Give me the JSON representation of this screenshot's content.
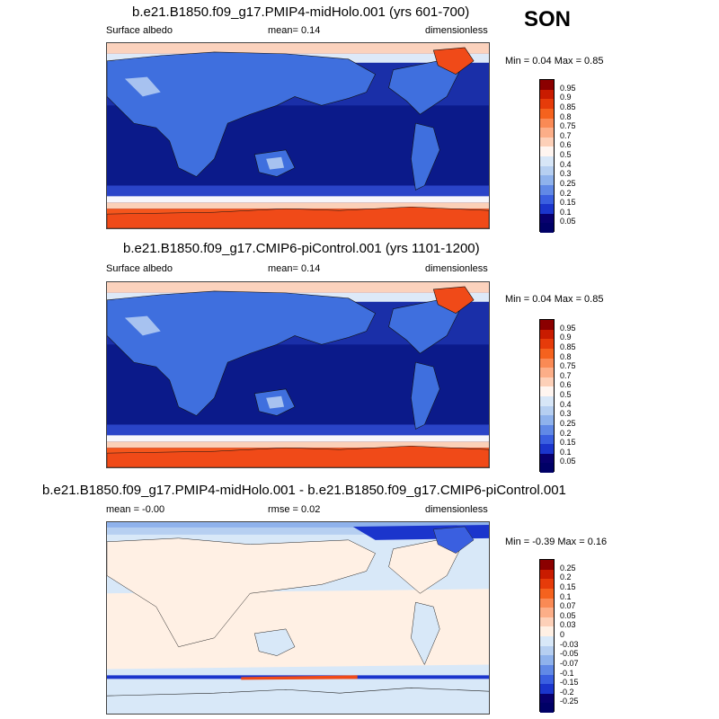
{
  "season": "SON",
  "panels": [
    {
      "title": "b.e21.B1850.f09_g17.PMIP4-midHolo.001 (yrs 601-700)",
      "left_label": "Surface albedo",
      "mean_label": "mean=   0.14",
      "right_label": "dimensionless",
      "minmax": "Min =   0.04 Max =   0.85",
      "legend_labels": [
        "0.95",
        "0.9",
        "0.85",
        "0.8",
        "0.75",
        "0.7",
        "0.6",
        "0.5",
        "0.4",
        "0.3",
        "0.25",
        "0.2",
        "0.15",
        "0.1",
        "0.05"
      ],
      "legend_colors": [
        "#8b0000",
        "#c91b00",
        "#e63b0a",
        "#f5621e",
        "#fa8a55",
        "#fcae88",
        "#fdd0b8",
        "#fff5f0",
        "#d7e6f7",
        "#b6cff1",
        "#8fb2ec",
        "#6189e6",
        "#3a5fe0",
        "#1b35cc",
        "#08006e",
        "#000066"
      ]
    },
    {
      "title": "b.e21.B1850.f09_g17.CMIP6-piControl.001 (yrs 1101-1200)",
      "left_label": "Surface albedo",
      "mean_label": "mean=   0.14",
      "right_label": "dimensionless",
      "minmax": "Min =   0.04 Max =   0.85",
      "legend_labels": [
        "0.95",
        "0.9",
        "0.85",
        "0.8",
        "0.75",
        "0.7",
        "0.6",
        "0.5",
        "0.4",
        "0.3",
        "0.25",
        "0.2",
        "0.15",
        "0.1",
        "0.05"
      ],
      "legend_colors": [
        "#8b0000",
        "#c91b00",
        "#e63b0a",
        "#f5621e",
        "#fa8a55",
        "#fcae88",
        "#fdd0b8",
        "#fff5f0",
        "#d7e6f7",
        "#b6cff1",
        "#8fb2ec",
        "#6189e6",
        "#3a5fe0",
        "#1b35cc",
        "#08006e",
        "#000066"
      ]
    },
    {
      "title": "b.e21.B1850.f09_g17.PMIP4-midHolo.001 - b.e21.B1850.f09_g17.CMIP6-piControl.001",
      "left_label": "mean =  -0.00",
      "mean_label": "rmse =   0.02",
      "right_label": "dimensionless",
      "minmax": "Min =  -0.39 Max =   0.16",
      "legend_labels": [
        "0.25",
        "0.2",
        "0.15",
        "0.1",
        "0.07",
        "0.05",
        "0.03",
        "0",
        "-0.03",
        "-0.05",
        "-0.07",
        "-0.1",
        "-0.15",
        "-0.2",
        "-0.25"
      ],
      "legend_colors": [
        "#8b0000",
        "#c91b00",
        "#e63b0a",
        "#f5621e",
        "#fa8a55",
        "#fcae88",
        "#fdd0b8",
        "#fff0e4",
        "#d8e8f8",
        "#b6cff1",
        "#8fb2ec",
        "#6189e6",
        "#3a5fe0",
        "#1b35cc",
        "#08006e",
        "#000066"
      ]
    }
  ]
}
